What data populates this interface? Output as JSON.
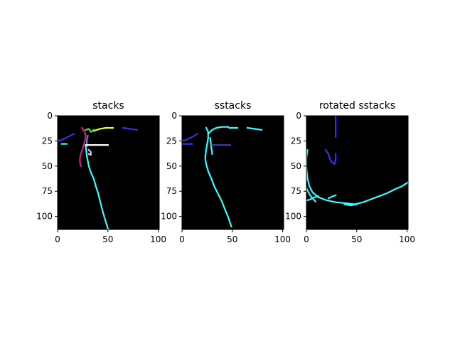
{
  "colors": {
    "background": "#ffffff",
    "axes_bg": "#000000",
    "cyan": "#33ffff",
    "blue": "#3d2fe0",
    "magenta": "#cc2288",
    "yellow": "#eeff33",
    "green": "#55dd55",
    "pink": "#e8c0ff",
    "white": "#ffffff"
  },
  "chart_data": [
    {
      "type": "heatmap",
      "title": "stacks",
      "xlim": [
        0,
        101
      ],
      "ylim": [
        113,
        0
      ],
      "xticks": [
        "0",
        "50",
        "100"
      ],
      "yticks": [
        "0",
        "25",
        "50",
        "75",
        "100"
      ],
      "grid": false,
      "traces": [
        {
          "color": "#3d2fe0",
          "points": [
            [
              0,
              25
            ],
            [
              4,
              24
            ],
            [
              8,
              22
            ],
            [
              12,
              20
            ],
            [
              16,
              18
            ]
          ]
        },
        {
          "color": "#33ffff",
          "points": [
            [
              4,
              28
            ],
            [
              9,
              28
            ]
          ]
        },
        {
          "color": "#3d2fe0",
          "points": [
            [
              65,
              12
            ],
            [
              72,
              13
            ],
            [
              79,
              14
            ]
          ]
        },
        {
          "color": "#eeff33",
          "points": [
            [
              36,
              15
            ],
            [
              42,
              13
            ],
            [
              48,
              12
            ],
            [
              55,
              12
            ]
          ]
        },
        {
          "color": "#cc2288",
          "points": [
            [
              24,
              12
            ],
            [
              27,
              16
            ],
            [
              28,
              20
            ],
            [
              27,
              26
            ],
            [
              25,
              32
            ],
            [
              23,
              38
            ],
            [
              22,
              44
            ],
            [
              23,
              50
            ]
          ]
        },
        {
          "color": "#3d8fe0",
          "points": [
            [
              30,
              20
            ],
            [
              29,
              25
            ],
            [
              29,
              30
            ]
          ]
        },
        {
          "color": "#55dd55",
          "points": [
            [
              28,
              14
            ],
            [
              31,
              13
            ],
            [
              33,
              16
            ],
            [
              36,
              14
            ]
          ]
        },
        {
          "color": "#33ffff",
          "points": [
            [
              28,
              30
            ],
            [
              29,
              40
            ],
            [
              31,
              50
            ],
            [
              33,
              56
            ],
            [
              36,
              63
            ],
            [
              38,
              70
            ],
            [
              40,
              76
            ],
            [
              42,
              84
            ],
            [
              44,
              92
            ],
            [
              46,
              99
            ],
            [
              48,
              106
            ],
            [
              50,
              112
            ]
          ]
        },
        {
          "color": "#ffffff",
          "points": [
            [
              28,
              29
            ],
            [
              50,
              29
            ]
          ]
        },
        {
          "color": "#e8c0ff",
          "points": [
            [
              31,
              34
            ],
            [
              33,
              36
            ],
            [
              33,
              39
            ],
            [
              31,
              38
            ]
          ]
        }
      ]
    },
    {
      "type": "heatmap",
      "title": "sstacks",
      "xlim": [
        0,
        101
      ],
      "ylim": [
        113,
        0
      ],
      "xticks": [
        "0",
        "50",
        "100"
      ],
      "yticks": [
        "0",
        "25",
        "50",
        "75",
        "100"
      ],
      "grid": false,
      "traces": [
        {
          "color": "#3d2fe0",
          "points": [
            [
              0,
              25
            ],
            [
              4,
              24
            ],
            [
              8,
              22
            ],
            [
              12,
              20
            ],
            [
              15,
              18
            ]
          ]
        },
        {
          "color": "#3d2fe0",
          "points": [
            [
              0,
              28
            ],
            [
              10,
              28
            ]
          ]
        },
        {
          "color": "#33ffff",
          "points": [
            [
              24,
              12
            ],
            [
              26,
              16
            ],
            [
              26,
              22
            ],
            [
              25,
              28
            ],
            [
              24,
              34
            ],
            [
              23,
              42
            ],
            [
              24,
              48
            ],
            [
              26,
              55
            ],
            [
              29,
              62
            ],
            [
              32,
              70
            ],
            [
              36,
              78
            ],
            [
              40,
              86
            ],
            [
              43,
              94
            ],
            [
              46,
              101
            ],
            [
              49,
              110
            ]
          ]
        },
        {
          "color": "#33ffff",
          "points": [
            [
              26,
              18
            ],
            [
              30,
              14
            ],
            [
              34,
              12
            ],
            [
              40,
              11
            ],
            [
              46,
              11
            ]
          ]
        },
        {
          "color": "#33ffff",
          "points": [
            [
              47,
              12
            ],
            [
              55,
              12
            ]
          ]
        },
        {
          "color": "#33ffff",
          "points": [
            [
              65,
              12
            ],
            [
              72,
              13
            ],
            [
              79,
              14
            ]
          ]
        },
        {
          "color": "#33ffff",
          "points": [
            [
              28,
              22
            ],
            [
              29,
              30
            ],
            [
              30,
              38
            ]
          ]
        },
        {
          "color": "#3d2fe0",
          "points": [
            [
              30,
              29
            ],
            [
              48,
              29
            ]
          ]
        }
      ]
    },
    {
      "type": "heatmap",
      "title": "rotated sstacks",
      "xlim": [
        0,
        101
      ],
      "ylim": [
        113,
        0
      ],
      "xticks": [
        "0",
        "50",
        "100"
      ],
      "yticks": [
        "0",
        "25",
        "50",
        "75",
        "100"
      ],
      "grid": false,
      "traces": [
        {
          "color": "#3d2fe0",
          "points": [
            [
              29,
              0
            ],
            [
              29,
              21
            ]
          ]
        },
        {
          "color": "#3d2fe0",
          "points": [
            [
              19,
              34
            ],
            [
              22,
              38
            ],
            [
              23,
              42
            ],
            [
              25,
              46
            ],
            [
              28,
              48
            ],
            [
              29,
              44
            ],
            [
              29,
              38
            ]
          ]
        },
        {
          "color": "#33ffff",
          "points": [
            [
              1,
              34
            ],
            [
              0,
              42
            ],
            [
              0,
              52
            ],
            [
              1,
              62
            ],
            [
              3,
              70
            ],
            [
              6,
              76
            ],
            [
              12,
              81
            ],
            [
              20,
              84
            ],
            [
              30,
              86
            ],
            [
              40,
              87
            ],
            [
              48,
              88
            ],
            [
              56,
              86
            ],
            [
              64,
              83
            ],
            [
              72,
              80
            ],
            [
              80,
              77
            ],
            [
              88,
              73
            ],
            [
              95,
              70
            ],
            [
              101,
              66
            ]
          ]
        },
        {
          "color": "#33ffff",
          "points": [
            [
              0,
              72
            ],
            [
              3,
              78
            ],
            [
              6,
              82
            ],
            [
              9,
              85
            ]
          ]
        },
        {
          "color": "#33ffff",
          "points": [
            [
              1,
              84
            ],
            [
              4,
              83
            ],
            [
              8,
              81
            ],
            [
              12,
              80
            ]
          ]
        },
        {
          "color": "#33ffff",
          "points": [
            [
              22,
              82
            ],
            [
              26,
              80
            ],
            [
              29,
              79
            ]
          ]
        },
        {
          "color": "#33ffff",
          "points": [
            [
              38,
              88
            ],
            [
              44,
              89
            ],
            [
              50,
              88
            ]
          ]
        }
      ]
    }
  ]
}
